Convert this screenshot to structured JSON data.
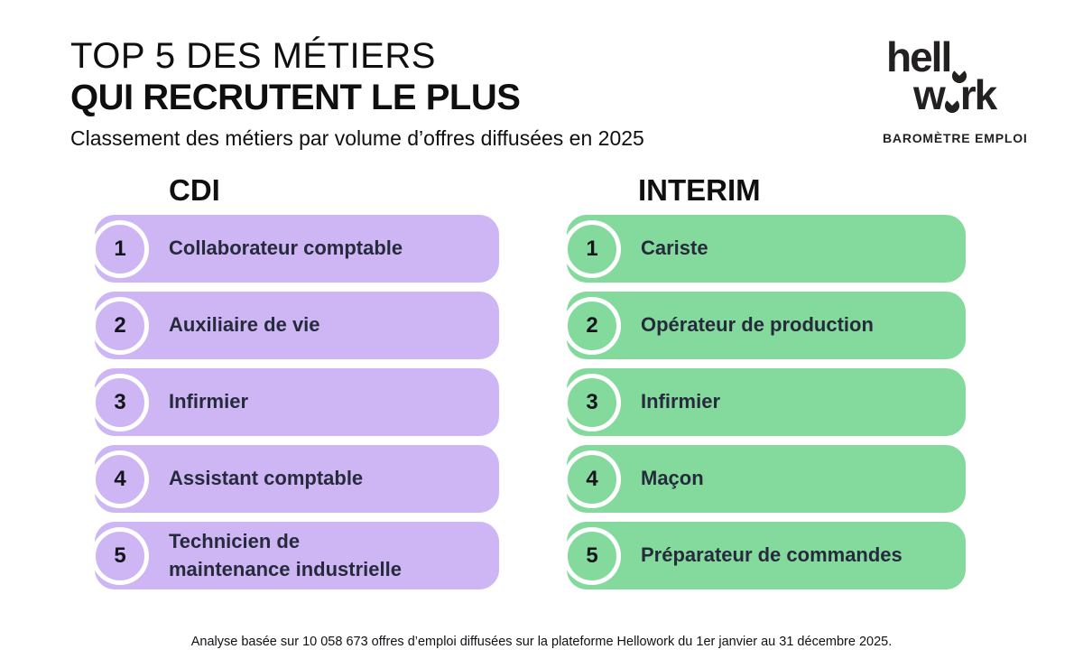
{
  "header": {
    "title_line1": "TOP 5 DES MÉTIERS",
    "title_line2": "QUI RECRUTENT LE PLUS",
    "subtitle": "Classement des métiers par volume d’offres diffusées en 2025"
  },
  "logo": {
    "line1_prefix": "hell",
    "line2_prefix": "w",
    "line2_suffix": "rk",
    "tagline": "BAROMÈTRE EMPLOI"
  },
  "columns": [
    {
      "id": "cdi",
      "label": "CDI",
      "color": "#CEB5F4",
      "items": [
        {
          "rank": "1",
          "label": "Collaborateur comptable"
        },
        {
          "rank": "2",
          "label": "Auxiliaire de vie"
        },
        {
          "rank": "3",
          "label": "Infirmier"
        },
        {
          "rank": "4",
          "label": "Assistant comptable"
        },
        {
          "rank": "5",
          "label": "Technicien de\nmaintenance industrielle"
        }
      ]
    },
    {
      "id": "interim",
      "label": "INTERIM",
      "color": "#84DA9D",
      "items": [
        {
          "rank": "1",
          "label": "Cariste"
        },
        {
          "rank": "2",
          "label": "Opérateur de production"
        },
        {
          "rank": "3",
          "label": "Infirmier"
        },
        {
          "rank": "4",
          "label": "Maçon"
        },
        {
          "rank": "5",
          "label": "Préparateur de commandes"
        }
      ]
    }
  ],
  "footer": {
    "note": "Analyse basée sur 10 058 673 offres d’emploi diffusées sur la plateforme Hellowork du 1er janvier au 31 décembre 2025."
  },
  "colors": {
    "cdi_accent": "#CEB5F4",
    "interim_accent": "#84DA9D",
    "text_dark": "#262B3C",
    "ink": "#0F0F0F",
    "badge_ring": "#FFFFFF"
  },
  "chart_data": [
    {
      "type": "table",
      "title": "CDI",
      "categories": [
        1,
        2,
        3,
        4,
        5
      ],
      "values": [
        "Collaborateur comptable",
        "Auxiliaire de vie",
        "Infirmier",
        "Assistant comptable",
        "Technicien de maintenance industrielle"
      ]
    },
    {
      "type": "table",
      "title": "INTERIM",
      "categories": [
        1,
        2,
        3,
        4,
        5
      ],
      "values": [
        "Cariste",
        "Opérateur de production",
        "Infirmier",
        "Maçon",
        "Préparateur de commandes"
      ]
    }
  ]
}
